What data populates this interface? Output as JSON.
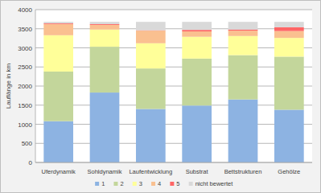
{
  "chart_data": {
    "type": "bar",
    "stacked": true,
    "grid": true,
    "legend": "bottom",
    "y_label": "Lauflänge in km",
    "categories": [
      "Uferdynamik",
      "Sohldynamik",
      "Laufentwicklung",
      "Substrat",
      "Bettstrukturen",
      "Gehölze"
    ],
    "series": [
      {
        "name": "1",
        "color": "#8db3e2",
        "values": [
          1080,
          1830,
          1400,
          1490,
          1650,
          1380
        ]
      },
      {
        "name": "2",
        "color": "#c3d69b",
        "values": [
          1300,
          1200,
          1060,
          1230,
          1160,
          1390
        ]
      },
      {
        "name": "3",
        "color": "#ffff99",
        "values": [
          950,
          450,
          660,
          570,
          500,
          490
        ]
      },
      {
        "name": "4",
        "color": "#fac090",
        "values": [
          290,
          120,
          330,
          140,
          140,
          180
        ]
      },
      {
        "name": "5",
        "color": "#ff6666",
        "values": [
          20,
          20,
          10,
          40,
          30,
          100
        ]
      },
      {
        "name": "nicht bewertet",
        "color": "#d9d9d9",
        "values": [
          40,
          60,
          220,
          210,
          200,
          140
        ]
      }
    ],
    "ylim": [
      0,
      4000
    ],
    "yticks": [
      0,
      500,
      1000,
      1500,
      2000,
      2500,
      3000,
      3500,
      4000
    ]
  }
}
